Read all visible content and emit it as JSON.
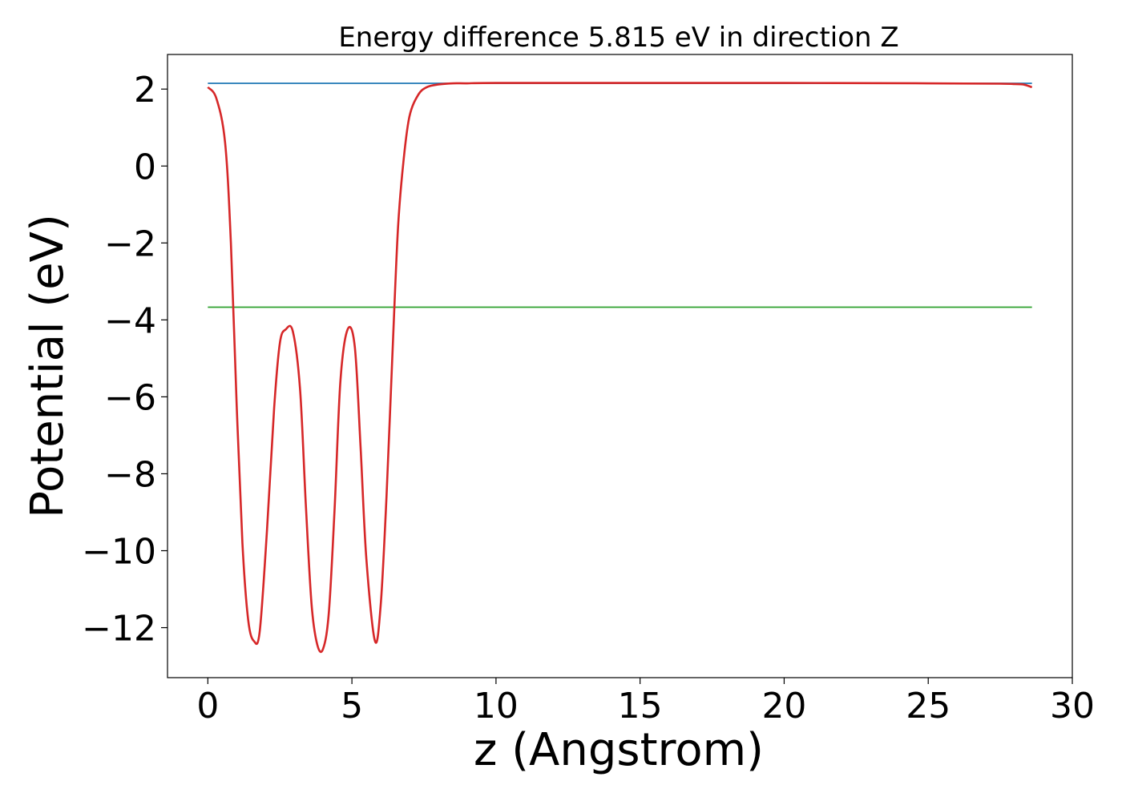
{
  "chart_data": {
    "type": "line",
    "title": "Energy difference 5.815 eV in direction Z",
    "xlabel": "z (Angstrom)",
    "ylabel": "Potential (eV)",
    "xlim": [
      -1.4,
      30.0
    ],
    "ylim": [
      -13.3,
      2.9
    ],
    "xticks": [
      0,
      5,
      10,
      15,
      20,
      25,
      30
    ],
    "yticks": [
      2,
      0,
      -2,
      -4,
      -6,
      -8,
      -10,
      -12
    ],
    "xtick_labels": [
      "0",
      "5",
      "10",
      "15",
      "20",
      "25",
      "30"
    ],
    "ytick_labels": [
      "2",
      "0",
      "−2",
      "−4",
      "−6",
      "−8",
      "−10",
      "−12"
    ],
    "grid": false,
    "legend": "none",
    "series": [
      {
        "color": "#1f77b4",
        "x": [
          0.0,
          28.6
        ],
        "y": [
          2.15,
          2.15
        ]
      },
      {
        "color": "#2ca02c",
        "x": [
          0.0,
          28.6
        ],
        "y": [
          -3.67,
          -3.67
        ]
      },
      {
        "color": "#d62728",
        "x": [
          0.0,
          0.3,
          0.6,
          0.8,
          1.0,
          1.2,
          1.4,
          1.6,
          1.8,
          2.05,
          2.3,
          2.5,
          2.7,
          2.95,
          3.2,
          3.4,
          3.6,
          3.8,
          4.0,
          4.2,
          4.4,
          4.6,
          4.85,
          5.1,
          5.3,
          5.5,
          5.8,
          6.0,
          6.2,
          6.4,
          6.6,
          6.8,
          7.0,
          7.3,
          7.6,
          8.0,
          8.5,
          9.0,
          10.0,
          15.0,
          20.0,
          25.0,
          27.5,
          28.0,
          28.3,
          28.6
        ],
        "y": [
          2.05,
          1.75,
          0.6,
          -2.0,
          -6.2,
          -9.8,
          -11.8,
          -12.35,
          -12.1,
          -9.5,
          -6.3,
          -4.6,
          -4.25,
          -4.3,
          -5.8,
          -8.8,
          -11.4,
          -12.45,
          -12.55,
          -11.6,
          -8.9,
          -5.6,
          -4.25,
          -4.7,
          -7.3,
          -10.2,
          -12.35,
          -11.4,
          -8.6,
          -5.0,
          -1.6,
          0.2,
          1.3,
          1.85,
          2.05,
          2.12,
          2.15,
          2.15,
          2.16,
          2.16,
          2.16,
          2.15,
          2.14,
          2.13,
          2.12,
          2.05
        ]
      }
    ]
  }
}
